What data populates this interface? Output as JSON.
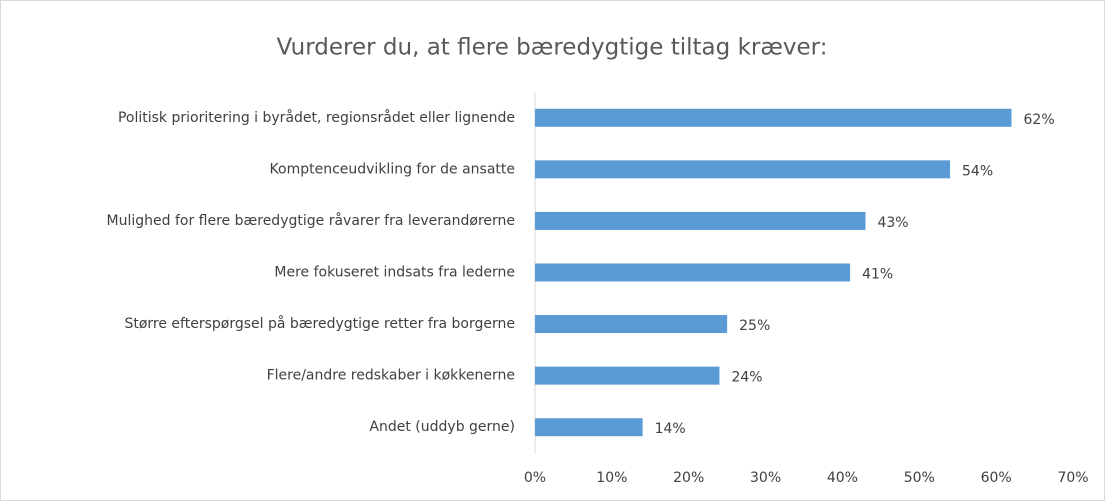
{
  "chart_data": {
    "type": "hbar",
    "title": "Vurderer du, at flere bæredygtige tiltag kræver:",
    "categories": [
      "Politisk prioritering i byrådet, regionsrådet eller lignende",
      "Komptenceudvikling for de ansatte",
      "Mulighed for flere bæredygtige råvarer fra leverandørerne",
      "Mere fokuseret indsats fra lederne",
      "Større efterspørgsel på bæredygtige retter fra borgerne",
      "Flere/andre redskaber i køkkenerne",
      "Andet (uddyb gerne)"
    ],
    "values": [
      62,
      54,
      43,
      41,
      25,
      24,
      14
    ],
    "value_labels": [
      "62%",
      "54%",
      "43%",
      "41%",
      "25%",
      "24%",
      "14%"
    ],
    "color": "#5b9bd5",
    "xlim": [
      0,
      70
    ],
    "xticks": [
      {
        "value": 0,
        "label": "0%"
      },
      {
        "value": 10,
        "label": "10%"
      },
      {
        "value": 20,
        "label": "20%"
      },
      {
        "value": 30,
        "label": "30%"
      },
      {
        "value": 40,
        "label": "40%"
      },
      {
        "value": 50,
        "label": "50%"
      },
      {
        "value": 60,
        "label": "60%"
      },
      {
        "value": 70,
        "label": "70%"
      }
    ],
    "grid": false
  }
}
